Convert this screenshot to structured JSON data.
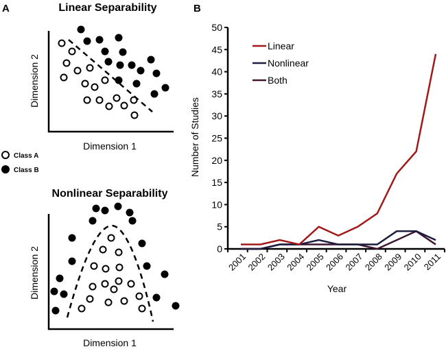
{
  "panel_a": {
    "label": "A",
    "linear_title": "Linear Separability",
    "nonlinear_title": "Nonlinear Separability",
    "xlabel": "Dimension 1",
    "ylabel": "Dimension 2",
    "legend": [
      {
        "name": "Class A",
        "marker": "open-circle"
      },
      {
        "name": "Class B",
        "marker": "filled-circle"
      }
    ]
  },
  "chart_data": {
    "type": "line",
    "panel_label": "B",
    "x": [
      "2001",
      "2002",
      "2003",
      "2004",
      "2005",
      "2006",
      "2007",
      "2008",
      "2009",
      "2010",
      "2011"
    ],
    "xlabel": "Year",
    "ylabel": "Number of Studies",
    "ylim": [
      0,
      50
    ],
    "yticks": [
      "0",
      "5",
      "10",
      "15",
      "20",
      "25",
      "30",
      "35",
      "40",
      "45",
      "50"
    ],
    "grid": false,
    "legend_position": "top-left",
    "series": [
      {
        "name": "Linear",
        "color": "#a01818",
        "values": [
          1,
          1,
          2,
          1,
          5,
          3,
          5,
          8,
          17,
          22,
          44
        ]
      },
      {
        "name": "Nonlinear",
        "color": "#1c1c3c",
        "values": [
          0,
          0,
          1,
          1,
          2,
          1,
          1,
          1,
          4,
          4,
          2
        ]
      },
      {
        "name": "Both",
        "color": "#3e1630",
        "values": [
          0,
          0,
          1,
          1,
          1,
          1,
          1,
          0,
          2,
          4,
          1
        ]
      }
    ]
  }
}
